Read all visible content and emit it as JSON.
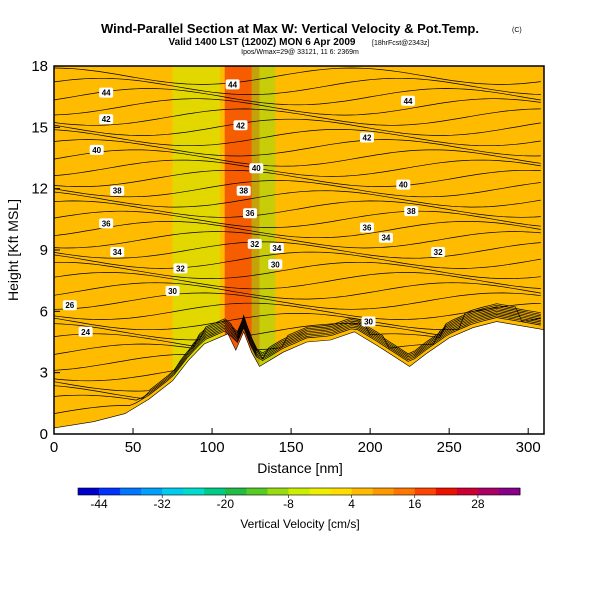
{
  "chart_data": {
    "type": "heatmap",
    "title": "Wind-Parallel Section at Max W: Vertical Velocity & Pot.Temp.",
    "title_mark": "(C)",
    "valid_line": "Valid 1400 LST (1200Z) MON 6 Apr 2009",
    "forecast_tag": "[18hrFcst@2343z]",
    "sub_line": "Ipos/Wmax=29@ 33121, 11 6: 2369m",
    "xlabel": "Distance [nm]",
    "ylabel": "Height [Kft MSL]",
    "xlim": [
      0,
      310
    ],
    "ylim": [
      0,
      18
    ],
    "x_ticks": [
      0,
      50,
      100,
      150,
      200,
      250,
      300
    ],
    "y_ticks": [
      0,
      3,
      6,
      9,
      12,
      15,
      18
    ],
    "colorbar": {
      "label": "Vertical Velocity [cm/s]",
      "tick_labels": [
        -44,
        -32,
        -20,
        -8,
        4,
        16,
        28
      ],
      "range": [
        -48,
        36
      ],
      "colors": [
        "#0000cc",
        "#0033ff",
        "#0077ff",
        "#00a0ff",
        "#00ccee",
        "#00ddcc",
        "#00cc88",
        "#22bb44",
        "#55cc22",
        "#99dd11",
        "#ccee00",
        "#eeee00",
        "#ffdd00",
        "#ffbb00",
        "#ff9900",
        "#ff7700",
        "#ff4400",
        "#ee1100",
        "#cc0033",
        "#aa0066",
        "#880088"
      ]
    },
    "velocity_field": [
      {
        "x_start": 0,
        "x_end": 90,
        "value": 4
      },
      {
        "x_start": 75,
        "x_end": 105,
        "value": -6
      },
      {
        "x_start": 108,
        "x_end": 130,
        "value": 22
      },
      {
        "x_start": 125,
        "x_end": 140,
        "value": -12
      },
      {
        "x_start": 145,
        "x_end": 310,
        "value": 6
      }
    ],
    "terrain_profile": [
      {
        "x": 0,
        "height": 0.3
      },
      {
        "x": 25,
        "height": 0.6
      },
      {
        "x": 45,
        "height": 1.0
      },
      {
        "x": 60,
        "height": 1.7
      },
      {
        "x": 75,
        "height": 2.6
      },
      {
        "x": 85,
        "height": 3.6
      },
      {
        "x": 95,
        "height": 4.4
      },
      {
        "x": 110,
        "height": 4.9
      },
      {
        "x": 115,
        "height": 4.1
      },
      {
        "x": 120,
        "height": 5.0
      },
      {
        "x": 125,
        "height": 4.0
      },
      {
        "x": 130,
        "height": 3.3
      },
      {
        "x": 145,
        "height": 4.0
      },
      {
        "x": 160,
        "height": 4.5
      },
      {
        "x": 175,
        "height": 4.6
      },
      {
        "x": 190,
        "height": 5.0
      },
      {
        "x": 205,
        "height": 4.3
      },
      {
        "x": 215,
        "height": 3.8
      },
      {
        "x": 225,
        "height": 3.3
      },
      {
        "x": 235,
        "height": 3.9
      },
      {
        "x": 250,
        "height": 4.7
      },
      {
        "x": 265,
        "height": 5.2
      },
      {
        "x": 280,
        "height": 5.5
      },
      {
        "x": 310,
        "height": 5.1
      }
    ],
    "theta_contours": [
      {
        "label": "24",
        "label_x": 20,
        "label_y": 5.0
      },
      {
        "label": "26",
        "label_x": 10,
        "label_y": 6.3
      },
      {
        "label": "30",
        "label_x": 75,
        "label_y": 7.0
      },
      {
        "label": "32",
        "label_x": 80,
        "label_y": 8.1
      },
      {
        "label": "34",
        "label_x": 40,
        "label_y": 8.9
      },
      {
        "label": "36",
        "label_x": 33,
        "label_y": 10.3
      },
      {
        "label": "38",
        "label_x": 40,
        "label_y": 11.9
      },
      {
        "label": "40",
        "label_x": 27,
        "label_y": 13.9
      },
      {
        "label": "42",
        "label_x": 33,
        "label_y": 15.4
      },
      {
        "label": "44",
        "label_x": 33,
        "label_y": 16.7
      }
    ],
    "inline_labels": [
      {
        "label": "44",
        "x": 113,
        "y": 17.1
      },
      {
        "label": "42",
        "x": 118,
        "y": 15.1
      },
      {
        "label": "40",
        "x": 128,
        "y": 13.0
      },
      {
        "label": "38",
        "x": 120,
        "y": 11.9
      },
      {
        "label": "36",
        "x": 124,
        "y": 10.8
      },
      {
        "label": "32",
        "x": 127,
        "y": 9.3
      },
      {
        "label": "34",
        "x": 141,
        "y": 9.1
      },
      {
        "label": "30",
        "x": 140,
        "y": 8.3
      },
      {
        "label": "44",
        "x": 224,
        "y": 16.3
      },
      {
        "label": "42",
        "x": 198,
        "y": 14.5
      },
      {
        "label": "40",
        "x": 221,
        "y": 12.2
      },
      {
        "label": "38",
        "x": 226,
        "y": 10.9
      },
      {
        "label": "36",
        "x": 198,
        "y": 10.1
      },
      {
        "label": "34",
        "x": 210,
        "y": 9.6
      },
      {
        "label": "32",
        "x": 243,
        "y": 8.9
      },
      {
        "label": "30",
        "x": 199,
        "y": 5.5
      }
    ]
  }
}
